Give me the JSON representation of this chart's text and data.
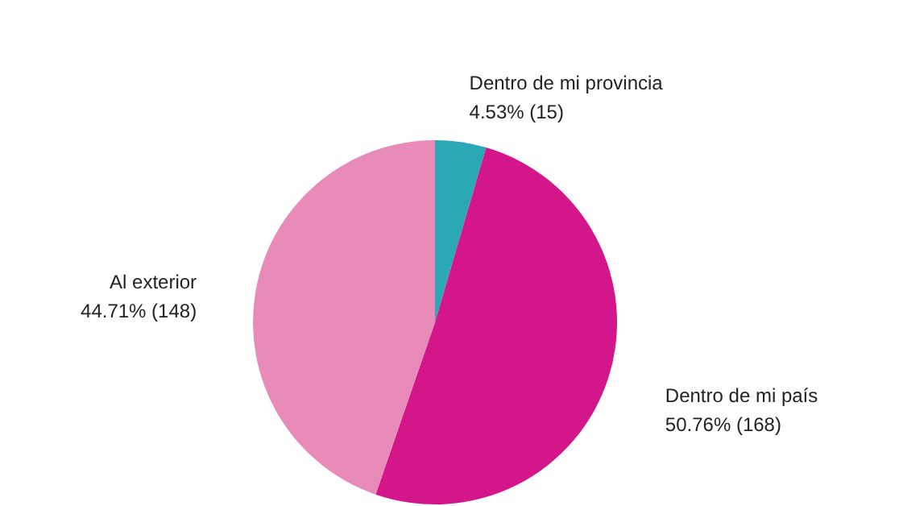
{
  "chart_data": {
    "type": "pie",
    "categories": [
      "Dentro de mi provincia",
      "Dentro de mi país",
      "Al exterior"
    ],
    "values": [
      15,
      168,
      148
    ],
    "value_labels": [
      "4.53% (15)",
      "50.76% (168)",
      "44.71% (148)"
    ],
    "colors": [
      "#2ba8b5",
      "#d4168b",
      "#e88bb9"
    ]
  }
}
